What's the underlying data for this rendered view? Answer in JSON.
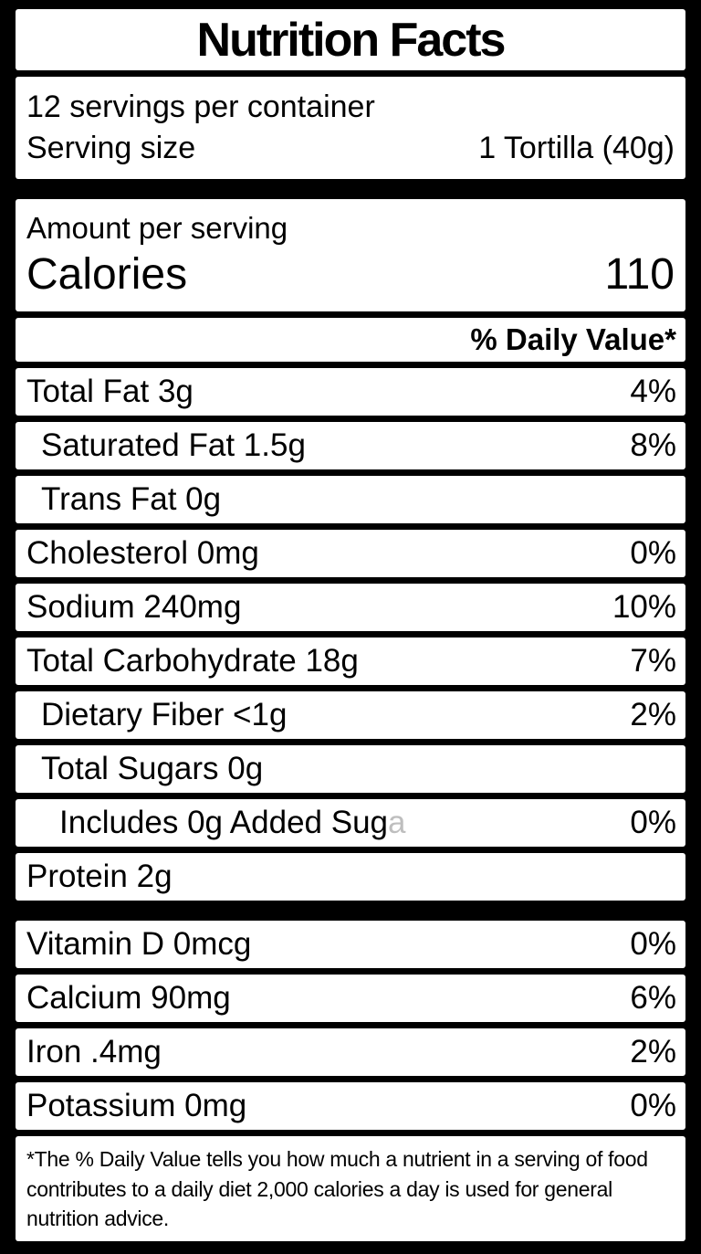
{
  "label": {
    "title": "Nutrition Facts",
    "servings_per_container": "12 servings per container",
    "serving_size_label": "Serving size",
    "serving_size_value": "1 Tortilla (40g)",
    "amount_per_serving": "Amount per serving",
    "calories_label": "Calories",
    "calories_value": "110",
    "daily_value_header": "% Daily Value*",
    "nutrients": [
      {
        "name": "Total Fat 3g",
        "dv": "4%"
      },
      {
        "name": "Saturated Fat 1.5g",
        "dv": "8%"
      },
      {
        "name": "Trans Fat 0g",
        "dv": ""
      },
      {
        "name": "Cholesterol 0mg",
        "dv": "0%"
      },
      {
        "name": "Sodium 240mg",
        "dv": "10%"
      },
      {
        "name": "Total Carbohydrate 18g",
        "dv": "7%"
      },
      {
        "name": "Dietary Fiber <1g",
        "dv": "2%"
      },
      {
        "name": "Total Sugars 0g",
        "dv": ""
      },
      {
        "name": "Includes 0g Added Sug",
        "name_clipped": "a",
        "dv": "0%"
      },
      {
        "name": "Protein 2g",
        "dv": ""
      }
    ],
    "micronutrients": [
      {
        "name": "Vitamin D 0mcg",
        "dv": "0%"
      },
      {
        "name": "Calcium 90mg",
        "dv": "6%"
      },
      {
        "name": "Iron .4mg",
        "dv": "2%"
      },
      {
        "name": "Potassium 0mg",
        "dv": "0%"
      }
    ],
    "footnote_lines": [
      "*The % Daily Value tells you how much a nutrient in a serving of food",
      "contributes to a daily diet 2,000 calories a day is used for general",
      "nutrition advice."
    ]
  },
  "colors": {
    "background": "#000000",
    "panel": "#ffffff",
    "text": "#000000"
  }
}
